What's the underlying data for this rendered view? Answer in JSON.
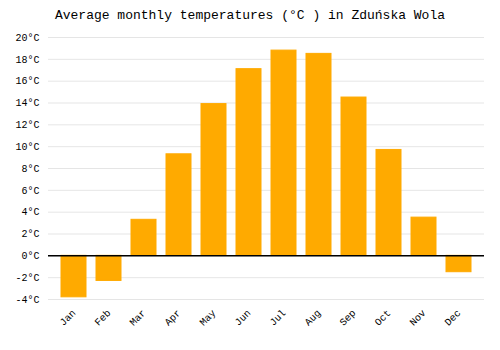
{
  "chart_data": {
    "type": "bar",
    "title": "Average monthly temperatures (°C ) in Zduńska Wola",
    "categories": [
      "Jan",
      "Feb",
      "Mar",
      "Apr",
      "May",
      "Jun",
      "Jul",
      "Aug",
      "Sep",
      "Oct",
      "Nov",
      "Dec"
    ],
    "values": [
      -3.8,
      -2.3,
      3.3,
      9.3,
      13.9,
      17.1,
      18.8,
      18.5,
      14.5,
      9.7,
      3.5,
      -1.5
    ],
    "color": "#FFAA00",
    "ylim": [
      -4,
      20
    ],
    "yticks": [
      {
        "value": -4,
        "label": "-4°C"
      },
      {
        "value": -2,
        "label": "-2°C"
      },
      {
        "value": 0,
        "label": "0°C"
      },
      {
        "value": 2,
        "label": "2°C"
      },
      {
        "value": 4,
        "label": "4°C"
      },
      {
        "value": 6,
        "label": "6°C"
      },
      {
        "value": 8,
        "label": "8°C"
      },
      {
        "value": 10,
        "label": "10°C"
      },
      {
        "value": 12,
        "label": "12°C"
      },
      {
        "value": 14,
        "label": "14°C"
      },
      {
        "value": 16,
        "label": "16°C"
      },
      {
        "value": 18,
        "label": "18°C"
      },
      {
        "value": 20,
        "label": "20°C"
      }
    ],
    "grid": true
  }
}
